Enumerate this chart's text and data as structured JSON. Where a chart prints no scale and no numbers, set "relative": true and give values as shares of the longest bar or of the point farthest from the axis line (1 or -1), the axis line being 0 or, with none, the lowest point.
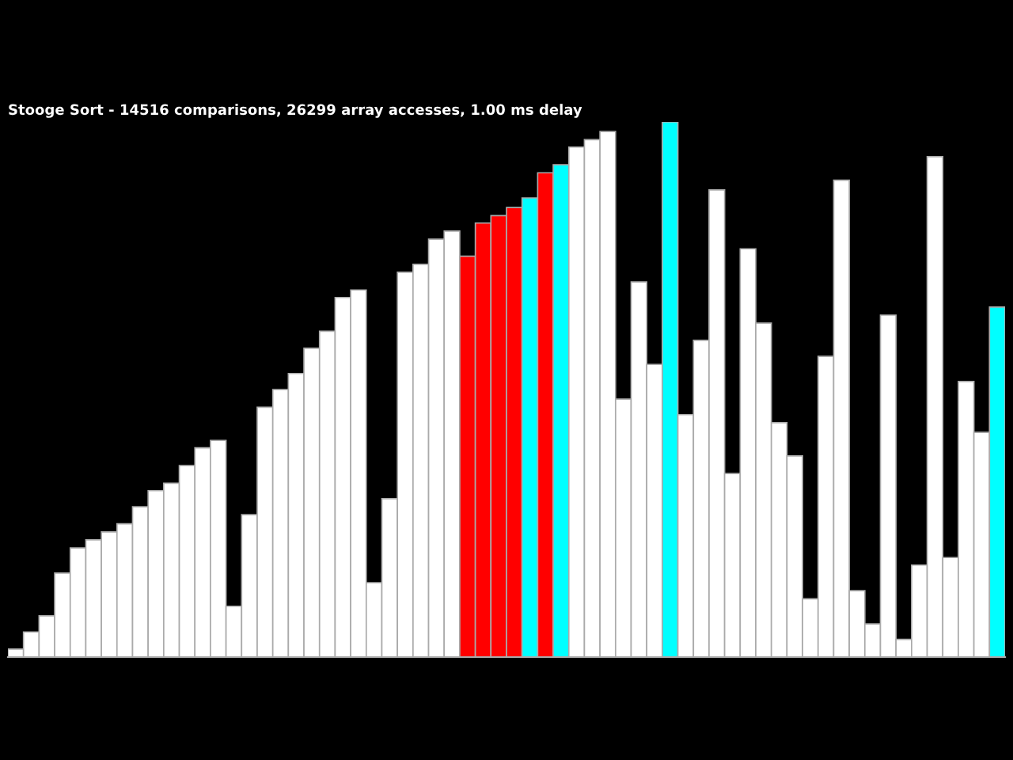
{
  "chart_data": {
    "type": "bar",
    "title": "Stooge Sort - 14516 comparisons, 26299 array accesses, 1.00 ms delay",
    "relative": true,
    "categories": [
      null,
      null,
      null,
      null,
      null,
      null,
      null,
      null,
      null,
      null,
      null,
      null,
      null,
      null,
      null,
      null,
      null,
      null,
      null,
      null,
      null,
      null,
      null,
      null,
      null,
      null,
      null,
      null,
      null,
      null,
      null,
      null,
      null,
      null,
      null,
      null,
      null,
      null,
      null,
      null,
      null,
      null,
      null,
      null,
      null,
      null,
      null,
      null,
      null,
      null,
      null,
      null,
      null,
      null,
      null,
      null,
      null,
      null,
      null,
      null,
      null,
      null,
      null,
      null
    ],
    "values": [
      0.015,
      0.047,
      0.077,
      0.157,
      0.204,
      0.219,
      0.234,
      0.249,
      0.281,
      0.311,
      0.325,
      0.358,
      0.391,
      0.405,
      0.095,
      0.266,
      0.467,
      0.5,
      0.53,
      0.577,
      0.609,
      0.672,
      0.686,
      0.139,
      0.296,
      0.719,
      0.734,
      0.781,
      0.796,
      0.749,
      0.811,
      0.825,
      0.84,
      0.858,
      0.905,
      0.92,
      0.953,
      0.967,
      0.982,
      0.482,
      0.701,
      0.547,
      1,
      0.453,
      0.592,
      0.873,
      0.343,
      0.763,
      0.624,
      0.438,
      0.376,
      0.109,
      0.562,
      0.891,
      0.124,
      0.062,
      0.639,
      0.033,
      0.172,
      0.935,
      0.186,
      0.515,
      0.42,
      0.654
    ],
    "colors": [
      "#ffffff",
      "#ffffff",
      "#ffffff",
      "#ffffff",
      "#ffffff",
      "#ffffff",
      "#ffffff",
      "#ffffff",
      "#ffffff",
      "#ffffff",
      "#ffffff",
      "#ffffff",
      "#ffffff",
      "#ffffff",
      "#ffffff",
      "#ffffff",
      "#ffffff",
      "#ffffff",
      "#ffffff",
      "#ffffff",
      "#ffffff",
      "#ffffff",
      "#ffffff",
      "#ffffff",
      "#ffffff",
      "#ffffff",
      "#ffffff",
      "#ffffff",
      "#ffffff",
      "#ff0000",
      "#ff0000",
      "#ff0000",
      "#ff0000",
      "#00ffff",
      "#ff0000",
      "#00ffff",
      "#ffffff",
      "#ffffff",
      "#ffffff",
      "#ffffff",
      "#ffffff",
      "#ffffff",
      "#00ffff",
      "#ffffff",
      "#ffffff",
      "#ffffff",
      "#ffffff",
      "#ffffff",
      "#ffffff",
      "#ffffff",
      "#ffffff",
      "#ffffff",
      "#ffffff",
      "#ffffff",
      "#ffffff",
      "#ffffff",
      "#ffffff",
      "#ffffff",
      "#ffffff",
      "#ffffff",
      "#ffffff",
      "#ffffff",
      "#ffffff",
      "#00ffff"
    ]
  }
}
